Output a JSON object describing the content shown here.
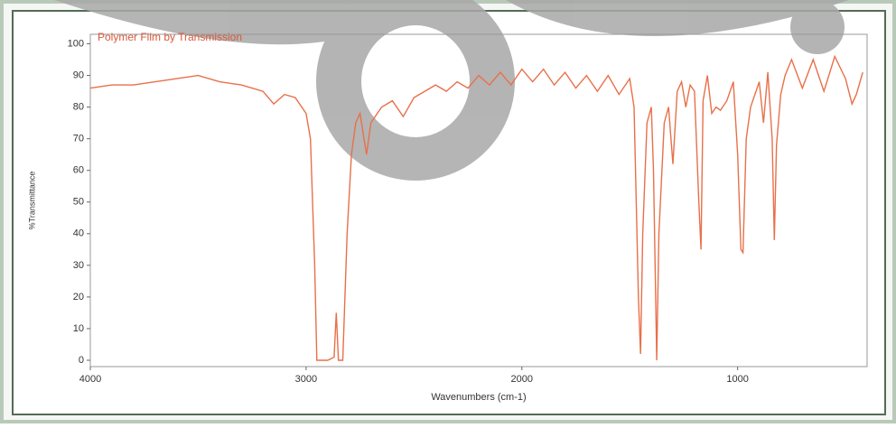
{
  "chart_data": {
    "type": "line",
    "title": "Polymer Film by Transmission",
    "xlabel": "Wavenumbers (cm-1)",
    "ylabel": "%Transmittance",
    "color": "#e8704a",
    "x": [
      4000,
      3900,
      3800,
      3700,
      3600,
      3500,
      3400,
      3300,
      3200,
      3150,
      3100,
      3050,
      3000,
      2980,
      2960,
      2950,
      2900,
      2870,
      2860,
      2850,
      2830,
      2810,
      2790,
      2770,
      2750,
      2720,
      2700,
      2650,
      2600,
      2550,
      2500,
      2450,
      2400,
      2350,
      2300,
      2250,
      2200,
      2150,
      2100,
      2050,
      2000,
      1950,
      1900,
      1850,
      1800,
      1750,
      1700,
      1650,
      1600,
      1550,
      1500,
      1480,
      1460,
      1450,
      1440,
      1420,
      1400,
      1390,
      1375,
      1365,
      1340,
      1320,
      1300,
      1280,
      1260,
      1240,
      1220,
      1200,
      1180,
      1170,
      1160,
      1140,
      1120,
      1100,
      1080,
      1050,
      1020,
      1000,
      985,
      975,
      960,
      940,
      900,
      880,
      860,
      840,
      830,
      820,
      800,
      780,
      750,
      700,
      650,
      600,
      550,
      500,
      470,
      450,
      420
    ],
    "values": [
      86,
      87,
      87,
      88,
      89,
      90,
      88,
      87,
      85,
      81,
      84,
      83,
      78,
      70,
      30,
      0,
      0,
      1,
      15,
      0,
      0,
      40,
      65,
      75,
      78,
      65,
      75,
      80,
      82,
      77,
      83,
      85,
      87,
      85,
      88,
      86,
      90,
      87,
      91,
      87,
      92,
      88,
      92,
      87,
      91,
      86,
      90,
      85,
      90,
      84,
      89,
      80,
      20,
      2,
      40,
      75,
      80,
      60,
      0,
      40,
      75,
      80,
      62,
      85,
      88,
      80,
      87,
      85,
      50,
      35,
      82,
      90,
      78,
      80,
      79,
      82,
      88,
      65,
      35,
      34,
      70,
      80,
      88,
      75,
      91,
      70,
      38,
      68,
      84,
      90,
      95,
      86,
      95,
      85,
      96,
      89,
      81,
      84,
      91
    ],
    "xlim": [
      4000,
      400
    ],
    "ylim": [
      -2,
      103
    ],
    "xticks": [
      4000,
      3000,
      2000,
      1000
    ],
    "yticks": [
      0,
      10,
      20,
      30,
      40,
      50,
      60,
      70,
      80,
      90,
      100
    ]
  }
}
